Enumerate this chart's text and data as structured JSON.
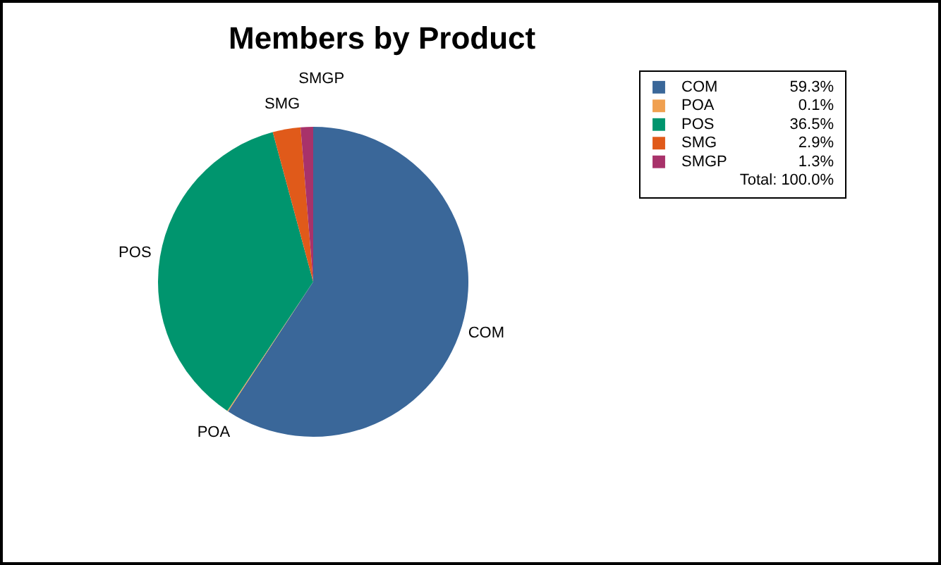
{
  "chart_data": {
    "type": "pie",
    "title": "Members by Product",
    "categories": [
      "COM",
      "POA",
      "POS",
      "SMG",
      "SMGP"
    ],
    "values": [
      59.3,
      0.1,
      36.5,
      2.9,
      1.3
    ],
    "colors": [
      "#3a6799",
      "#f0a050",
      "#00956e",
      "#e05a1a",
      "#a8326a"
    ],
    "value_labels": [
      "59.3%",
      "0.1%",
      "36.5%",
      "2.9%",
      "1.3%"
    ],
    "legend": "right",
    "annotations": [
      "Total: 100.0%"
    ]
  }
}
